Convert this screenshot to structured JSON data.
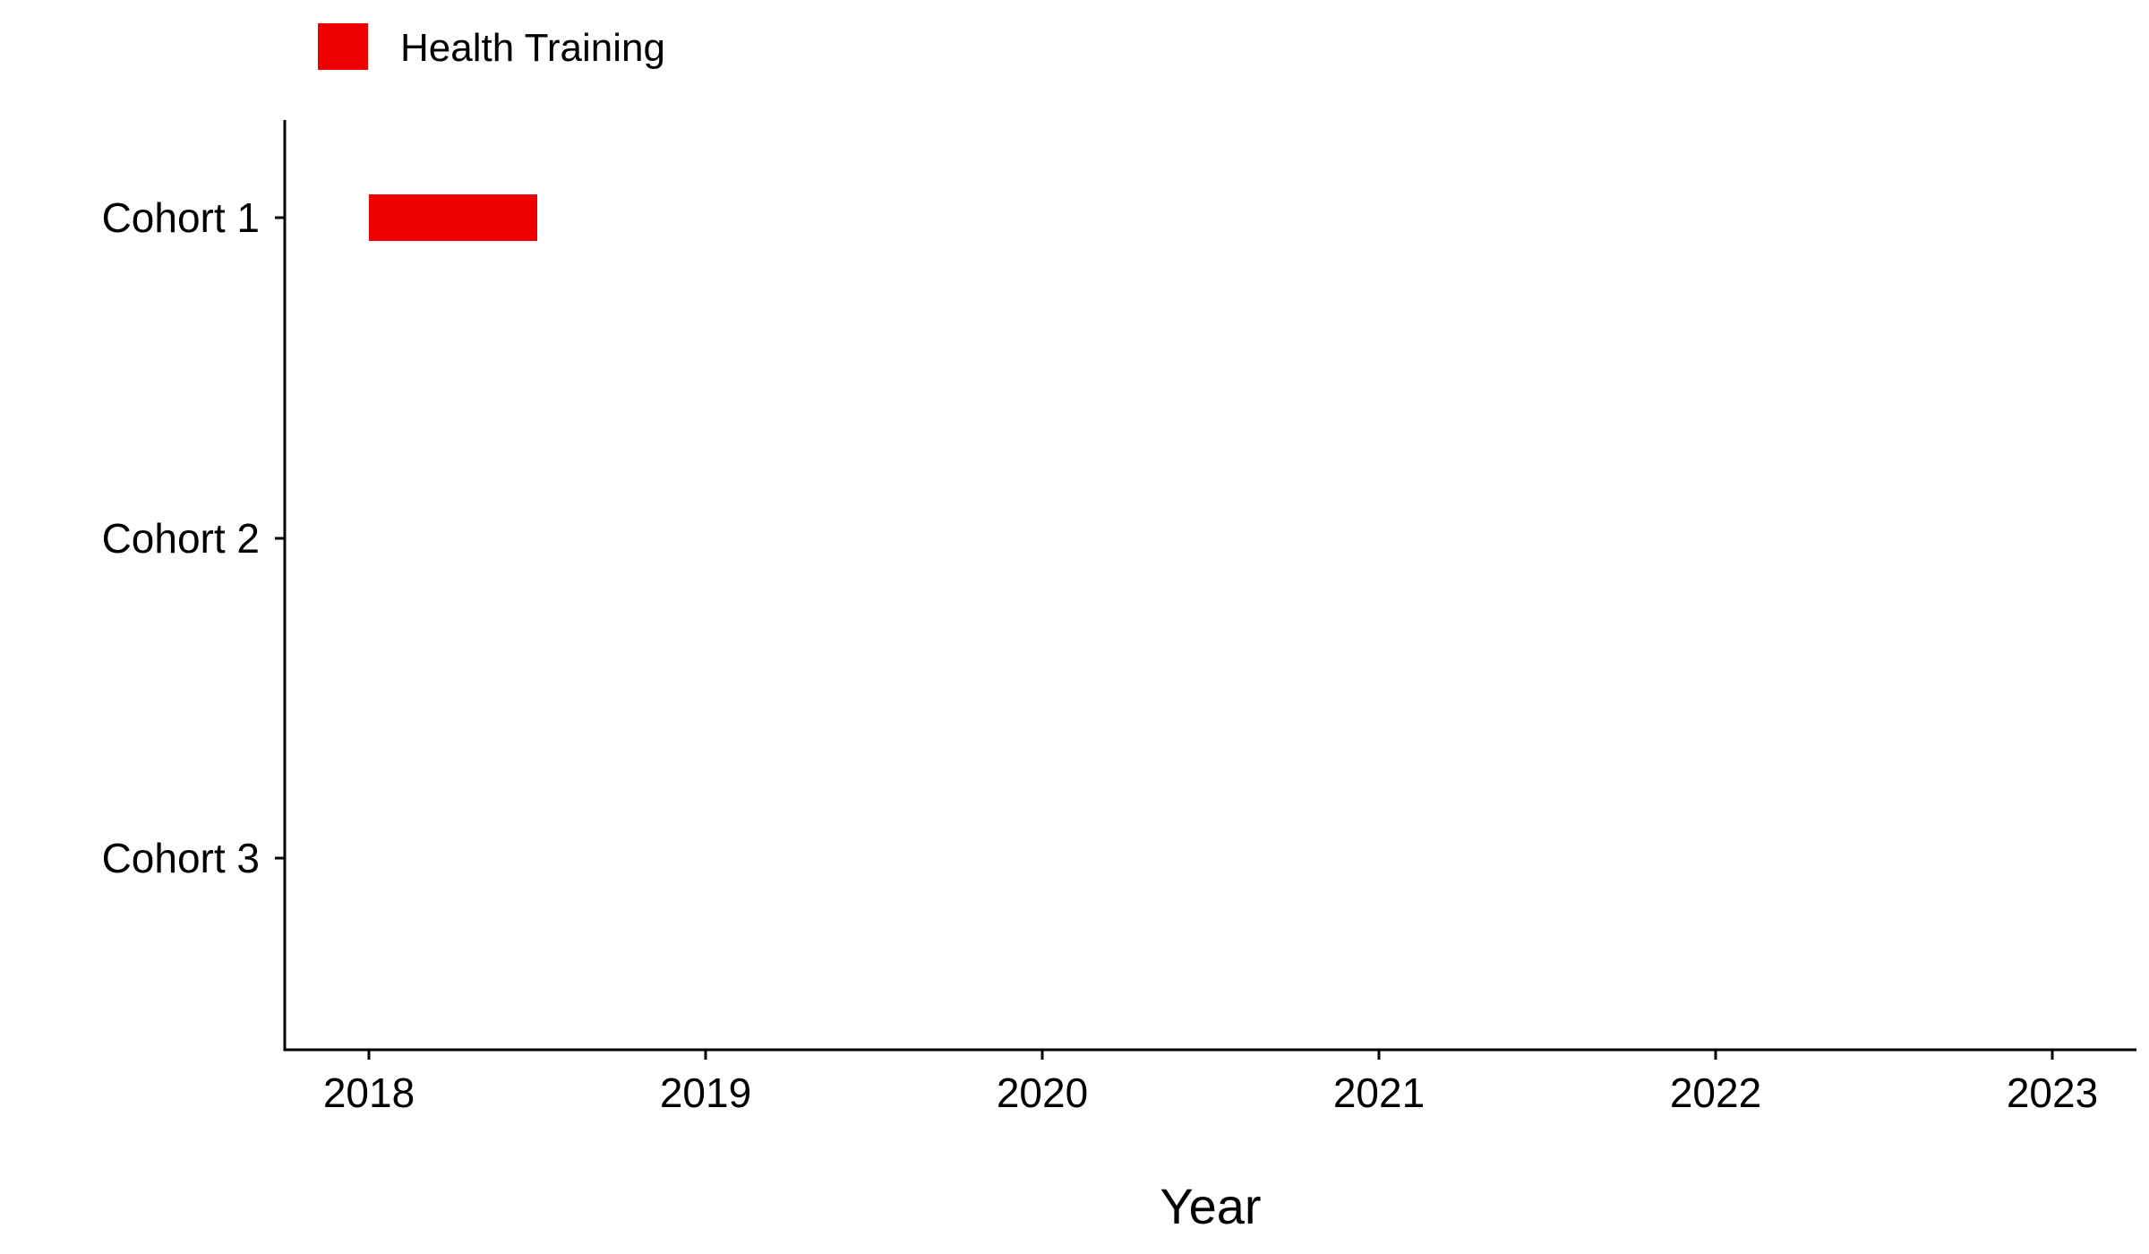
{
  "chart_data": {
    "type": "bar",
    "orientation": "horizontal-range",
    "title": "",
    "xlabel": "Year",
    "ylabel": "",
    "categories": [
      "Cohort 1",
      "Cohort 2",
      "Cohort 3"
    ],
    "x_ticks": [
      "2018",
      "2019",
      "2020",
      "2021",
      "2022",
      "2023"
    ],
    "xlim": [
      2017.75,
      2023.25
    ],
    "grid": false,
    "legend_position": "top-left",
    "series": [
      {
        "name": "Health Training",
        "color": "#EE0000",
        "segments": [
          {
            "category": "Cohort 1",
            "start": 2018.0,
            "end": 2018.5
          }
        ]
      }
    ]
  }
}
